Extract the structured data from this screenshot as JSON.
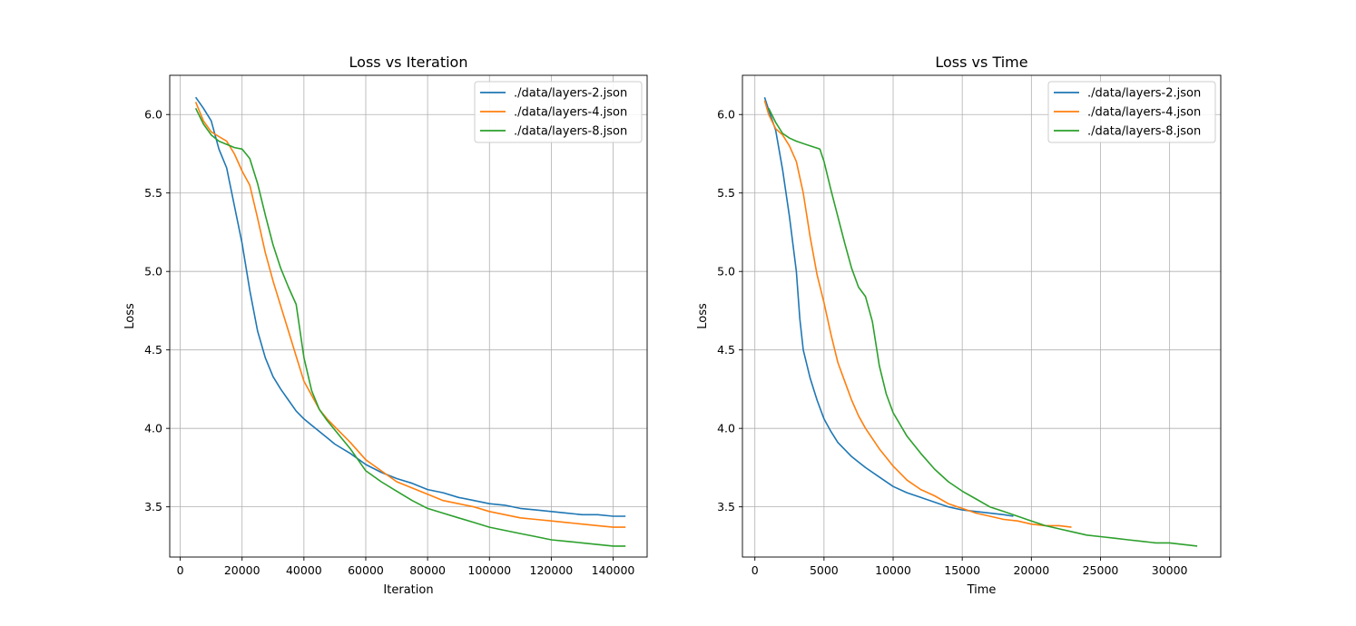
{
  "chart_data": [
    {
      "type": "line",
      "title": "Loss vs Iteration",
      "xlabel": "Iteration",
      "ylabel": "Loss",
      "xlim": [
        -3400,
        151000
      ],
      "ylim": [
        3.18,
        6.25
      ],
      "xticks": [
        0,
        20000,
        40000,
        60000,
        80000,
        100000,
        120000,
        140000
      ],
      "yticks": [
        3.5,
        4.0,
        4.5,
        5.0,
        5.5,
        6.0
      ],
      "grid": true,
      "legend": "upper right",
      "series": [
        {
          "name": "./data/layers-2.json",
          "color": "#1f77b4",
          "points": [
            [
              5000,
              6.11
            ],
            [
              7500,
              6.04
            ],
            [
              10000,
              5.96
            ],
            [
              12500,
              5.78
            ],
            [
              15000,
              5.66
            ],
            [
              17500,
              5.42
            ],
            [
              20000,
              5.18
            ],
            [
              22500,
              4.88
            ],
            [
              25000,
              4.62
            ],
            [
              27500,
              4.45
            ],
            [
              30000,
              4.33
            ],
            [
              32500,
              4.25
            ],
            [
              35000,
              4.18
            ],
            [
              37500,
              4.11
            ],
            [
              40000,
              4.06
            ],
            [
              42500,
              4.02
            ],
            [
              45000,
              3.98
            ],
            [
              47500,
              3.94
            ],
            [
              50000,
              3.9
            ],
            [
              55000,
              3.84
            ],
            [
              60000,
              3.77
            ],
            [
              65000,
              3.72
            ],
            [
              70000,
              3.68
            ],
            [
              75000,
              3.65
            ],
            [
              80000,
              3.61
            ],
            [
              85000,
              3.59
            ],
            [
              90000,
              3.56
            ],
            [
              95000,
              3.54
            ],
            [
              100000,
              3.52
            ],
            [
              105000,
              3.51
            ],
            [
              110000,
              3.49
            ],
            [
              115000,
              3.48
            ],
            [
              120000,
              3.47
            ],
            [
              125000,
              3.46
            ],
            [
              130000,
              3.45
            ],
            [
              135000,
              3.45
            ],
            [
              140000,
              3.44
            ],
            [
              144000,
              3.44
            ]
          ]
        },
        {
          "name": "./data/layers-4.json",
          "color": "#ff7f0e",
          "points": [
            [
              5000,
              6.08
            ],
            [
              7500,
              5.96
            ],
            [
              10000,
              5.89
            ],
            [
              12500,
              5.86
            ],
            [
              15000,
              5.83
            ],
            [
              17500,
              5.75
            ],
            [
              20000,
              5.64
            ],
            [
              22500,
              5.55
            ],
            [
              25000,
              5.34
            ],
            [
              27500,
              5.12
            ],
            [
              30000,
              4.94
            ],
            [
              32500,
              4.78
            ],
            [
              35000,
              4.62
            ],
            [
              37500,
              4.46
            ],
            [
              40000,
              4.3
            ],
            [
              42500,
              4.21
            ],
            [
              45000,
              4.12
            ],
            [
              47500,
              4.06
            ],
            [
              50000,
              4.01
            ],
            [
              55000,
              3.91
            ],
            [
              60000,
              3.8
            ],
            [
              65000,
              3.73
            ],
            [
              70000,
              3.66
            ],
            [
              75000,
              3.62
            ],
            [
              80000,
              3.58
            ],
            [
              85000,
              3.54
            ],
            [
              90000,
              3.52
            ],
            [
              95000,
              3.5
            ],
            [
              100000,
              3.47
            ],
            [
              105000,
              3.45
            ],
            [
              110000,
              3.43
            ],
            [
              115000,
              3.42
            ],
            [
              120000,
              3.41
            ],
            [
              125000,
              3.4
            ],
            [
              130000,
              3.39
            ],
            [
              135000,
              3.38
            ],
            [
              140000,
              3.37
            ],
            [
              144000,
              3.37
            ]
          ]
        },
        {
          "name": "./data/layers-8.json",
          "color": "#2ca02c",
          "points": [
            [
              5000,
              6.04
            ],
            [
              7500,
              5.94
            ],
            [
              10000,
              5.87
            ],
            [
              12500,
              5.83
            ],
            [
              15000,
              5.81
            ],
            [
              17500,
              5.79
            ],
            [
              20000,
              5.78
            ],
            [
              22500,
              5.72
            ],
            [
              25000,
              5.56
            ],
            [
              27500,
              5.36
            ],
            [
              30000,
              5.17
            ],
            [
              32500,
              5.02
            ],
            [
              35000,
              4.9
            ],
            [
              37500,
              4.79
            ],
            [
              40000,
              4.45
            ],
            [
              42500,
              4.24
            ],
            [
              45000,
              4.12
            ],
            [
              47500,
              4.05
            ],
            [
              50000,
              3.99
            ],
            [
              55000,
              3.87
            ],
            [
              60000,
              3.73
            ],
            [
              65000,
              3.66
            ],
            [
              70000,
              3.6
            ],
            [
              75000,
              3.54
            ],
            [
              80000,
              3.49
            ],
            [
              85000,
              3.46
            ],
            [
              90000,
              3.43
            ],
            [
              95000,
              3.4
            ],
            [
              100000,
              3.37
            ],
            [
              105000,
              3.35
            ],
            [
              110000,
              3.33
            ],
            [
              115000,
              3.31
            ],
            [
              120000,
              3.29
            ],
            [
              125000,
              3.28
            ],
            [
              130000,
              3.27
            ],
            [
              135000,
              3.26
            ],
            [
              140000,
              3.25
            ],
            [
              144000,
              3.25
            ]
          ]
        }
      ]
    },
    {
      "type": "line",
      "title": "Loss vs Time",
      "xlabel": "Time",
      "ylabel": "Loss",
      "xlim": [
        -900,
        33700
      ],
      "ylim": [
        3.18,
        6.25
      ],
      "xticks": [
        0,
        5000,
        10000,
        15000,
        20000,
        25000,
        30000
      ],
      "yticks": [
        3.5,
        4.0,
        4.5,
        5.0,
        5.5,
        6.0
      ],
      "grid": true,
      "legend": "upper right",
      "series": [
        {
          "name": "./data/layers-2.json",
          "color": "#1f77b4",
          "points": [
            [
              700,
              6.11
            ],
            [
              1000,
              6.03
            ],
            [
              1500,
              5.9
            ],
            [
              2000,
              5.65
            ],
            [
              2500,
              5.35
            ],
            [
              3000,
              5.0
            ],
            [
              3250,
              4.7
            ],
            [
              3500,
              4.5
            ],
            [
              4000,
              4.32
            ],
            [
              4500,
              4.18
            ],
            [
              5000,
              4.06
            ],
            [
              5500,
              3.98
            ],
            [
              6000,
              3.91
            ],
            [
              7000,
              3.82
            ],
            [
              8000,
              3.75
            ],
            [
              9000,
              3.69
            ],
            [
              10000,
              3.63
            ],
            [
              11000,
              3.59
            ],
            [
              12000,
              3.56
            ],
            [
              13000,
              3.53
            ],
            [
              14000,
              3.5
            ],
            [
              15000,
              3.48
            ],
            [
              16000,
              3.47
            ],
            [
              17000,
              3.46
            ],
            [
              18000,
              3.45
            ],
            [
              18700,
              3.44
            ]
          ]
        },
        {
          "name": "./data/layers-4.json",
          "color": "#ff7f0e",
          "points": [
            [
              700,
              6.09
            ],
            [
              1000,
              6.0
            ],
            [
              1500,
              5.91
            ],
            [
              2000,
              5.87
            ],
            [
              2500,
              5.8
            ],
            [
              3000,
              5.7
            ],
            [
              3500,
              5.5
            ],
            [
              4000,
              5.22
            ],
            [
              4500,
              4.98
            ],
            [
              5000,
              4.8
            ],
            [
              5500,
              4.6
            ],
            [
              6000,
              4.42
            ],
            [
              6500,
              4.3
            ],
            [
              7000,
              4.18
            ],
            [
              7500,
              4.08
            ],
            [
              8000,
              4.0
            ],
            [
              9000,
              3.87
            ],
            [
              10000,
              3.76
            ],
            [
              11000,
              3.67
            ],
            [
              12000,
              3.61
            ],
            [
              13000,
              3.57
            ],
            [
              14000,
              3.52
            ],
            [
              15000,
              3.49
            ],
            [
              16000,
              3.46
            ],
            [
              17000,
              3.44
            ],
            [
              18000,
              3.42
            ],
            [
              19000,
              3.41
            ],
            [
              20000,
              3.39
            ],
            [
              21000,
              3.38
            ],
            [
              22000,
              3.38
            ],
            [
              22900,
              3.37
            ]
          ]
        },
        {
          "name": "./data/layers-8.json",
          "color": "#2ca02c",
          "points": [
            [
              1000,
              6.04
            ],
            [
              1500,
              5.95
            ],
            [
              2000,
              5.88
            ],
            [
              2500,
              5.85
            ],
            [
              3000,
              5.83
            ],
            [
              4000,
              5.8
            ],
            [
              4700,
              5.78
            ],
            [
              5000,
              5.7
            ],
            [
              5500,
              5.52
            ],
            [
              6000,
              5.35
            ],
            [
              6500,
              5.18
            ],
            [
              7000,
              5.02
            ],
            [
              7500,
              4.9
            ],
            [
              8000,
              4.84
            ],
            [
              8500,
              4.68
            ],
            [
              9000,
              4.4
            ],
            [
              9500,
              4.22
            ],
            [
              10000,
              4.1
            ],
            [
              11000,
              3.95
            ],
            [
              12000,
              3.84
            ],
            [
              13000,
              3.74
            ],
            [
              14000,
              3.66
            ],
            [
              15000,
              3.6
            ],
            [
              16000,
              3.55
            ],
            [
              17000,
              3.5
            ],
            [
              18000,
              3.47
            ],
            [
              19000,
              3.44
            ],
            [
              20000,
              3.41
            ],
            [
              21000,
              3.38
            ],
            [
              22000,
              3.36
            ],
            [
              23000,
              3.34
            ],
            [
              24000,
              3.32
            ],
            [
              25000,
              3.31
            ],
            [
              26000,
              3.3
            ],
            [
              27000,
              3.29
            ],
            [
              28000,
              3.28
            ],
            [
              29000,
              3.27
            ],
            [
              30000,
              3.27
            ],
            [
              31000,
              3.26
            ],
            [
              32000,
              3.25
            ]
          ]
        }
      ]
    }
  ]
}
